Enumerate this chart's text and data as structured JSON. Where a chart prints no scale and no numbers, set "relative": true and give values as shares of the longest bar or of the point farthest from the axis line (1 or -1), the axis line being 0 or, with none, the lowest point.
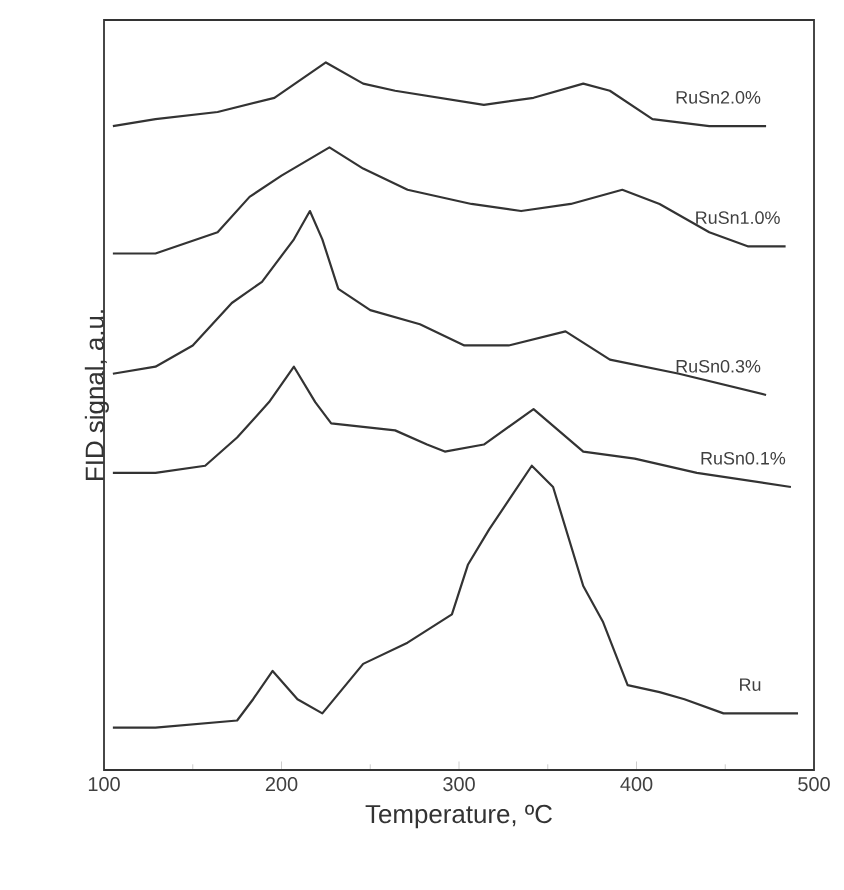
{
  "chart_data": {
    "type": "line",
    "relative": true,
    "xlabel": "Temperature, ºC",
    "ylabel": "FID signal, a.u.",
    "xlim": [
      100,
      500
    ],
    "xticks": [
      100,
      200,
      300,
      400,
      500
    ],
    "grid": false,
    "legend": false,
    "marker": "none",
    "line_style": "solid",
    "series": [
      {
        "name": "RuSn2.0%",
        "color": "#333333",
        "x": [
          105,
          129,
          164,
          196,
          225,
          246,
          264,
          289,
          314,
          342,
          370,
          385,
          409,
          441,
          473
        ],
        "values": [
          0.91,
          0.92,
          0.93,
          0.95,
          1.0,
          0.97,
          0.96,
          0.95,
          0.94,
          0.95,
          0.97,
          0.96,
          0.92,
          0.91,
          0.91
        ]
      },
      {
        "name": "RuSn1.0%",
        "color": "#333333",
        "x": [
          105,
          129,
          164,
          182,
          200,
          227,
          246,
          271,
          307,
          335,
          363,
          392,
          413,
          441,
          463,
          484
        ],
        "values": [
          0.73,
          0.73,
          0.76,
          0.81,
          0.84,
          0.88,
          0.85,
          0.82,
          0.8,
          0.79,
          0.8,
          0.82,
          0.8,
          0.76,
          0.74,
          0.74
        ]
      },
      {
        "name": "RuSn0.3%",
        "color": "#333333",
        "x": [
          105,
          129,
          150,
          172,
          189,
          207,
          216,
          223,
          232,
          250,
          278,
          303,
          328,
          360,
          385,
          424,
          473
        ],
        "values": [
          0.56,
          0.57,
          0.6,
          0.66,
          0.69,
          0.75,
          0.79,
          0.75,
          0.68,
          0.65,
          0.63,
          0.6,
          0.6,
          0.62,
          0.58,
          0.56,
          0.53
        ]
      },
      {
        "name": "RuSn0.1%",
        "color": "#333333",
        "x": [
          105,
          129,
          157,
          175,
          193,
          207,
          219,
          228,
          264,
          282,
          292,
          314,
          342,
          370,
          399,
          434,
          487
        ],
        "values": [
          0.42,
          0.42,
          0.43,
          0.47,
          0.52,
          0.57,
          0.52,
          0.49,
          0.48,
          0.46,
          0.45,
          0.46,
          0.51,
          0.45,
          0.44,
          0.42,
          0.4
        ]
      },
      {
        "name": "Ru",
        "color": "#333333",
        "x": [
          105,
          129,
          175,
          184,
          195,
          209,
          223,
          246,
          271,
          296,
          305,
          317,
          341,
          353,
          370,
          381,
          395,
          413,
          427,
          449,
          491
        ],
        "values": [
          0.06,
          0.06,
          0.07,
          0.1,
          0.14,
          0.1,
          0.08,
          0.15,
          0.18,
          0.22,
          0.29,
          0.34,
          0.43,
          0.4,
          0.26,
          0.21,
          0.12,
          0.11,
          0.1,
          0.08,
          0.08
        ]
      }
    ]
  }
}
